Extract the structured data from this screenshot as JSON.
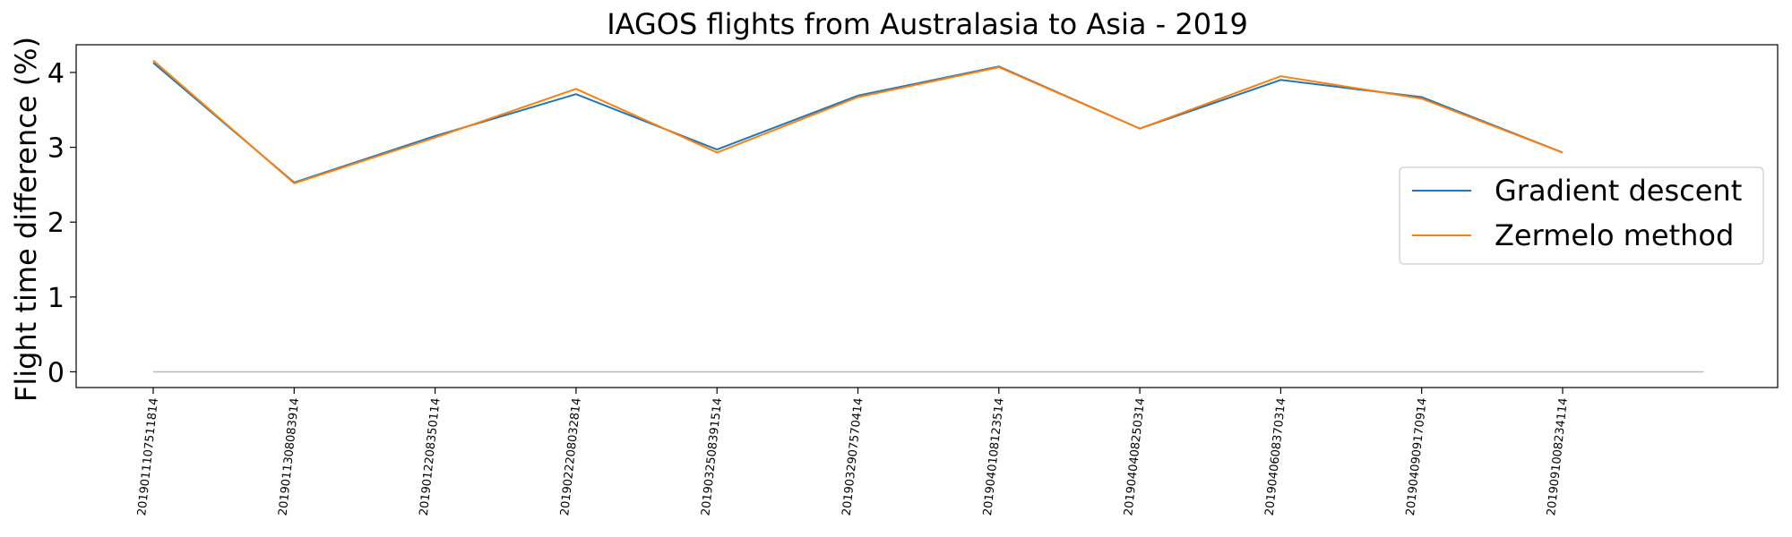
{
  "chart_data": {
    "type": "line",
    "title": "IAGOS flights from Australasia to Asia - 2019",
    "xlabel": "",
    "ylabel": "Flight time difference (%)",
    "categories": [
      "2019011107511814",
      "2019011308083914",
      "2019012208350114",
      "2019022208032814",
      "2019032508391514",
      "2019032907570414",
      "2019040108123514",
      "2019040408250314",
      "2019040608370314",
      "2019040909170914",
      "2019091008234114"
    ],
    "series": [
      {
        "name": "Gradient descent",
        "color": "#1f77b4",
        "values": [
          4.13,
          2.53,
          3.15,
          3.71,
          2.97,
          3.69,
          4.08,
          3.25,
          3.9,
          3.67,
          2.93
        ]
      },
      {
        "name": "Zermelo method",
        "color": "#ff7f0e",
        "values": [
          4.16,
          2.52,
          3.13,
          3.78,
          2.93,
          3.67,
          4.07,
          3.25,
          3.95,
          3.65,
          2.93
        ]
      }
    ],
    "reference_line": {
      "value": 0,
      "color": "#bbbbbb"
    },
    "yticks": [
      0,
      1,
      2,
      3,
      4
    ],
    "ylim": [
      -0.21,
      4.37
    ],
    "legend_position": "center-right",
    "grid": false
  }
}
